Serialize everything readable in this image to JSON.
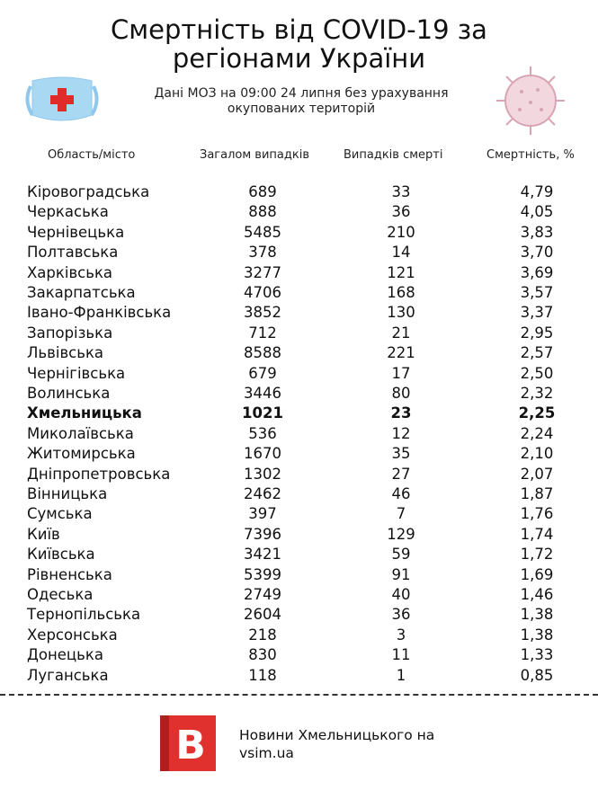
{
  "header": {
    "title_lines": [
      "Смертність від COVID-19 за",
      "регіонами України"
    ],
    "subtitle_lines": [
      "Дані МОЗ на 09:00 24 липня без урахування",
      "окупованих територій"
    ]
  },
  "table": {
    "columns": [
      "Область/місто",
      "Загалом випадків",
      "Випадків смерті",
      "Смертність, %"
    ],
    "highlight_row": 11,
    "rows": [
      [
        "Кіровоградська",
        "689",
        "33",
        "4,79"
      ],
      [
        "Черкаська",
        "888",
        "36",
        "4,05"
      ],
      [
        "Чернівецька",
        "5485",
        "210",
        "3,83"
      ],
      [
        "Полтавська",
        "378",
        "14",
        "3,70"
      ],
      [
        "Харківська",
        "3277",
        "121",
        "3,69"
      ],
      [
        "Закарпатська",
        "4706",
        "168",
        "3,57"
      ],
      [
        "Івано-Франківська",
        "3852",
        "130",
        "3,37"
      ],
      [
        "Запорізька",
        "712",
        "21",
        "2,95"
      ],
      [
        "Львівська",
        "8588",
        "221",
        "2,57"
      ],
      [
        "Чернігівська",
        "679",
        "17",
        "2,50"
      ],
      [
        "Волинська",
        "3446",
        "80",
        "2,32"
      ],
      [
        "Хмельницька",
        "1021",
        "23",
        "2,25"
      ],
      [
        "Миколаївська",
        "536",
        "12",
        "2,24"
      ],
      [
        "Житомирська",
        "1670",
        "35",
        "2,10"
      ],
      [
        "Дніпропетровська",
        "1302",
        "27",
        "2,07"
      ],
      [
        "Вінницька",
        "2462",
        "46",
        "1,87"
      ],
      [
        "Сумська",
        "397",
        "7",
        "1,76"
      ],
      [
        "Київ",
        "7396",
        "129",
        "1,74"
      ],
      [
        "Київська",
        "3421",
        "59",
        "1,72"
      ],
      [
        "Рівненська",
        "5399",
        "91",
        "1,69"
      ],
      [
        "Одеська",
        "2749",
        "40",
        "1,46"
      ],
      [
        "Тернопільська",
        "2604",
        "36",
        "1,38"
      ],
      [
        "Херсонська",
        "218",
        "3",
        "1,38"
      ],
      [
        "Донецька",
        "830",
        "11",
        "1,33"
      ],
      [
        "Луганська",
        "118",
        "1",
        "0,85"
      ]
    ]
  },
  "footer": {
    "logo_letter": "B",
    "text_lines": [
      "Новини Хмельницького на",
      "vsim.ua"
    ]
  }
}
